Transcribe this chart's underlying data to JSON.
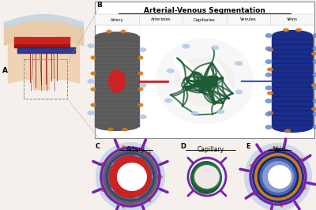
{
  "title": "Arterial-Venous Segmentation",
  "bg_color": "#f5f0eb",
  "white": "#ffffff",
  "artery_red": "#cc2222",
  "artery_dark": "#8B0000",
  "vein_blue": "#1a2d8a",
  "vein_mid": "#3355bb",
  "vein_light": "#6688cc",
  "cap_green": "#1d5c35",
  "cap_green2": "#2d7a4a",
  "gray_wall": "#5a5a5a",
  "gray_mid": "#888888",
  "orange": "#cc7a20",
  "blue_halo": "#b0c8e8",
  "purple_spike": "#7722aa",
  "pink_cap": "#f0e0dc",
  "col_labels": [
    "Artery",
    "Arterioles",
    "Capillaries",
    "Venules",
    "Veins"
  ],
  "panel_letters": [
    "A",
    "B",
    "C",
    "D",
    "E"
  ]
}
